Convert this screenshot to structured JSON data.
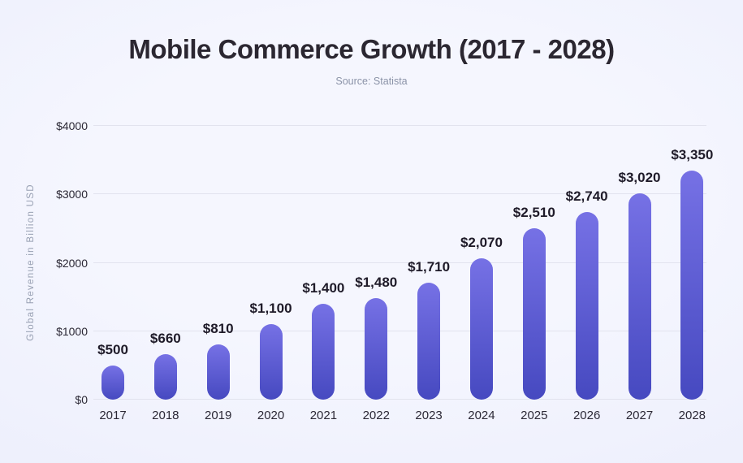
{
  "header": {
    "title": "Mobile Commerce Growth (2017 - 2028)",
    "subtitle": "Source: Statista"
  },
  "chart_data": {
    "type": "bar",
    "title": "Mobile Commerce Growth (2017 - 2028)",
    "subtitle": "Source: Statista",
    "xlabel": "",
    "ylabel": "Global Revenue in Billion USD",
    "ylim": [
      0,
      4000
    ],
    "grid": true,
    "legend": false,
    "categories": [
      "2017",
      "2018",
      "2019",
      "2020",
      "2021",
      "2022",
      "2023",
      "2024",
      "2025",
      "2026",
      "2027",
      "2028"
    ],
    "values": [
      500,
      660,
      810,
      1100,
      1400,
      1480,
      1710,
      2070,
      2510,
      2740,
      3020,
      3350
    ],
    "value_labels": [
      "$500",
      "$660",
      "$810",
      "$1,100",
      "$1,400",
      "$1,480",
      "$1,710",
      "$2,070",
      "$2,510",
      "$2,740",
      "$3,020",
      "$3,350"
    ],
    "yticks": [
      {
        "value": 0,
        "label": "$0"
      },
      {
        "value": 1000,
        "label": "$1000"
      },
      {
        "value": 2000,
        "label": "$2000"
      },
      {
        "value": 3000,
        "label": "$3000"
      },
      {
        "value": 4000,
        "label": "$4000"
      }
    ],
    "colors": {
      "bar_gradient_top": "#7671e5",
      "bar_gradient_bottom": "#4649c0",
      "background_center": "#f5f6fe",
      "background_edge": "#e7eafb",
      "title": "#2b2731",
      "subtitle": "#8b93a8",
      "axis_title": "#98a0b3",
      "tick_label": "#2c2936",
      "value_label": "#1f1b29",
      "gridline": "#e2e3ee"
    }
  }
}
